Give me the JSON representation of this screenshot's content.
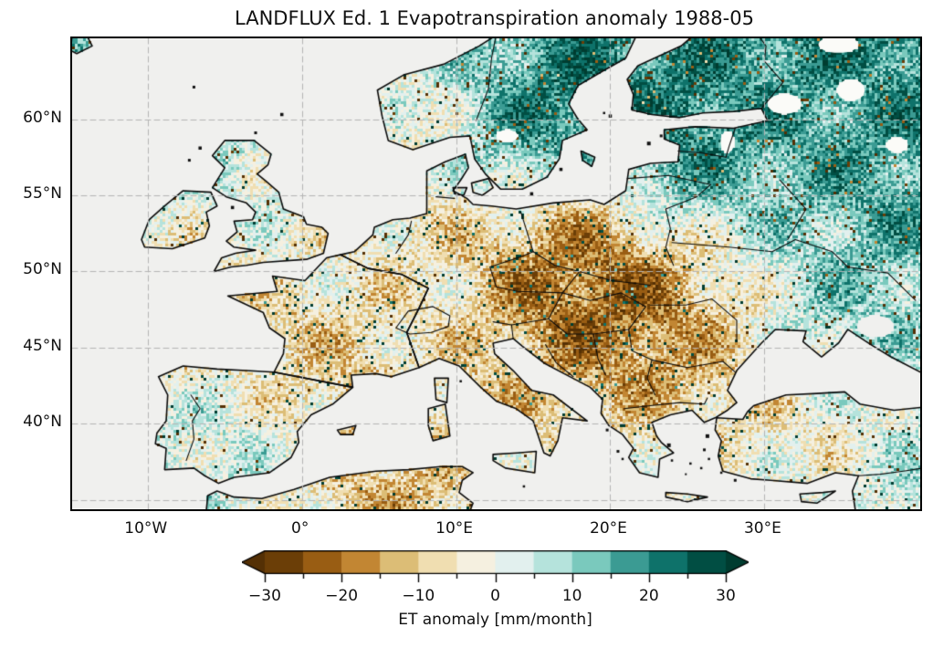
{
  "figure": {
    "background": "#ffffff"
  },
  "chart_data": {
    "type": "heatmap",
    "subtype": "geographic anomaly map (equirectangular, Europe)",
    "title": "LANDFLUX Ed. 1 Evapotranspiration anomaly 1988-05",
    "extent": {
      "lon": [
        -14.9,
        40.1
      ],
      "lat": [
        34.4,
        65.3
      ]
    },
    "x_ticks": [
      {
        "value": -10,
        "label": "10°W"
      },
      {
        "value": 0,
        "label": "0°"
      },
      {
        "value": 10,
        "label": "10°E"
      },
      {
        "value": 20,
        "label": "20°E"
      },
      {
        "value": 30,
        "label": "30°E"
      }
    ],
    "y_ticks": [
      {
        "value": 60,
        "label": "60°N"
      },
      {
        "value": 55,
        "label": "55°N"
      },
      {
        "value": 50,
        "label": "50°N"
      },
      {
        "value": 45,
        "label": "45°N"
      },
      {
        "value": 40,
        "label": "40°N"
      }
    ],
    "gridlines": {
      "style": "dashed",
      "color": "#b4b4b4",
      "lons": [
        -10,
        0,
        10,
        20,
        30
      ],
      "lats": [
        35,
        40,
        45,
        50,
        55,
        60
      ]
    },
    "ocean_color": "#f0f0ee",
    "lake_color": "#fbfbf8",
    "coastline_color": "#0a0a0a",
    "colorbar": {
      "label": "ET anomaly [mm/month]",
      "orientation": "horizontal",
      "extend": "both",
      "boundaries": [
        -30,
        -25,
        -20,
        -15,
        -10,
        -5,
        0,
        5,
        10,
        15,
        20,
        25,
        30
      ],
      "colors": [
        "#6b3e07",
        "#995d13",
        "#c28633",
        "#dcbd76",
        "#f0deb1",
        "#f5f0e0",
        "#e2f0ee",
        "#b5e3dc",
        "#7ac9bd",
        "#3b9b93",
        "#0e726a",
        "#014e43"
      ],
      "under_color": "#543005",
      "over_color": "#003c30",
      "tick_values": [
        -30,
        -20,
        -10,
        0,
        10,
        20,
        30
      ],
      "ticks": [
        "−30",
        "−20",
        "−10",
        "0",
        "10",
        "20",
        "30"
      ],
      "minor_tick_values": [
        -25,
        -15,
        -5,
        5,
        15,
        25
      ]
    },
    "field_samples_format": [
      "lon_deg_east",
      "lat_deg_north",
      "ET_anomaly_mm_per_month"
    ],
    "field_samples": [
      [
        -4.2,
        57.5,
        12
      ],
      [
        -3.8,
        55.6,
        6
      ],
      [
        -1.8,
        53.0,
        1
      ],
      [
        -0.5,
        51.3,
        -4
      ],
      [
        -3.8,
        50.8,
        -2
      ],
      [
        -3.8,
        52.3,
        2
      ],
      [
        -8.0,
        53.3,
        -2
      ],
      [
        -6.8,
        54.7,
        3
      ],
      [
        -14.6,
        64.8,
        8
      ],
      [
        6.5,
        60.5,
        4
      ],
      [
        9.5,
        62.5,
        8
      ],
      [
        12.0,
        64.5,
        12
      ],
      [
        17.0,
        63.5,
        20
      ],
      [
        15.5,
        60.5,
        24
      ],
      [
        14.0,
        57.5,
        27
      ],
      [
        13.5,
        55.8,
        18
      ],
      [
        22.5,
        60.8,
        14
      ],
      [
        25.5,
        62.5,
        20
      ],
      [
        27.0,
        64.5,
        18
      ],
      [
        9.2,
        55.9,
        4
      ],
      [
        25.5,
        58.6,
        27
      ],
      [
        24.5,
        56.9,
        28
      ],
      [
        23.8,
        55.4,
        22
      ],
      [
        21.5,
        54.8,
        10
      ],
      [
        31.5,
        63.5,
        24
      ],
      [
        35.5,
        61.5,
        28
      ],
      [
        32.5,
        58.5,
        26
      ],
      [
        38.0,
        57.5,
        24
      ],
      [
        38.5,
        54.5,
        18
      ],
      [
        39.5,
        62.0,
        22
      ],
      [
        30.5,
        54.5,
        14
      ],
      [
        25.8,
        53.5,
        5
      ],
      [
        18.5,
        53.8,
        -14
      ],
      [
        19.5,
        51.8,
        -26
      ],
      [
        22.5,
        50.8,
        -28
      ],
      [
        16.5,
        51.2,
        -24
      ],
      [
        9.8,
        53.5,
        -8
      ],
      [
        12.8,
        51.5,
        -22
      ],
      [
        9.5,
        51.0,
        -13
      ],
      [
        11.5,
        48.8,
        -13
      ],
      [
        7.0,
        50.5,
        -8
      ],
      [
        5.5,
        52.3,
        -4
      ],
      [
        4.5,
        50.4,
        -8
      ],
      [
        2.5,
        49.3,
        -13
      ],
      [
        -2.5,
        48.2,
        -8
      ],
      [
        0.0,
        46.8,
        -19
      ],
      [
        3.0,
        45.3,
        -26
      ],
      [
        5.5,
        48.3,
        -13
      ],
      [
        0.5,
        44.3,
        -18
      ],
      [
        5.5,
        43.8,
        -12
      ],
      [
        7.8,
        46.6,
        -3
      ],
      [
        10.5,
        46.8,
        0
      ],
      [
        14.5,
        47.6,
        -9
      ],
      [
        15.0,
        49.9,
        -24
      ],
      [
        19.5,
        48.8,
        -18
      ],
      [
        19.2,
        47.1,
        -17
      ],
      [
        16.2,
        45.6,
        -15
      ],
      [
        17.8,
        44.2,
        -17
      ],
      [
        20.8,
        44.3,
        -19
      ],
      [
        21.7,
        41.6,
        -13
      ],
      [
        20.0,
        40.8,
        -10
      ],
      [
        22.5,
        46.4,
        -18
      ],
      [
        25.0,
        46.3,
        -14
      ],
      [
        26.5,
        44.8,
        -16
      ],
      [
        28.3,
        47.2,
        -10
      ],
      [
        25.5,
        43.3,
        -19
      ],
      [
        24.5,
        41.9,
        -13
      ],
      [
        26.8,
        41.4,
        -9
      ],
      [
        21.8,
        39.7,
        -11
      ],
      [
        22.3,
        37.5,
        -7
      ],
      [
        23.8,
        38.4,
        -6
      ],
      [
        25.5,
        49.3,
        -10
      ],
      [
        30.5,
        50.8,
        4
      ],
      [
        32.5,
        48.8,
        4
      ],
      [
        36.5,
        48.9,
        7
      ],
      [
        31.5,
        46.8,
        1
      ],
      [
        38.5,
        47.8,
        6
      ],
      [
        34.2,
        45.2,
        11
      ],
      [
        39.8,
        50.5,
        10
      ],
      [
        39.5,
        45.3,
        4
      ],
      [
        11.5,
        44.9,
        -9
      ],
      [
        13.5,
        42.3,
        -12
      ],
      [
        16.2,
        40.3,
        -9
      ],
      [
        16.2,
        38.8,
        -6
      ],
      [
        14.2,
        37.5,
        -9
      ],
      [
        8.9,
        40.1,
        -5
      ],
      [
        9.0,
        42.2,
        -4
      ],
      [
        -4.5,
        43.2,
        -15
      ],
      [
        -8.0,
        42.8,
        -4
      ],
      [
        0.8,
        42.4,
        -21
      ],
      [
        1.8,
        41.6,
        -14
      ],
      [
        -3.5,
        40.3,
        16
      ],
      [
        -1.5,
        41.8,
        14
      ],
      [
        -1.8,
        38.3,
        12
      ],
      [
        -4.8,
        37.3,
        8
      ],
      [
        -4.5,
        36.6,
        -7
      ],
      [
        -6.0,
        39.0,
        5
      ],
      [
        -8.2,
        41.3,
        -2
      ],
      [
        -8.0,
        38.0,
        2
      ],
      [
        -5.2,
        34.7,
        4
      ],
      [
        0.5,
        35.0,
        0
      ],
      [
        3.5,
        36.3,
        -5
      ],
      [
        7.0,
        35.3,
        -9
      ],
      [
        9.8,
        36.2,
        -4
      ],
      [
        29.5,
        40.5,
        -8
      ],
      [
        32.5,
        41.5,
        -13
      ],
      [
        36.5,
        41.0,
        -14
      ],
      [
        32.5,
        38.8,
        7
      ],
      [
        35.5,
        38.5,
        9
      ],
      [
        38.8,
        37.6,
        21
      ],
      [
        39.8,
        39.9,
        5
      ],
      [
        27.8,
        38.6,
        3
      ],
      [
        30.2,
        37.0,
        8
      ],
      [
        27.2,
        41.3,
        -6
      ],
      [
        36.2,
        35.3,
        15
      ],
      [
        33.0,
        35.1,
        5
      ]
    ]
  }
}
